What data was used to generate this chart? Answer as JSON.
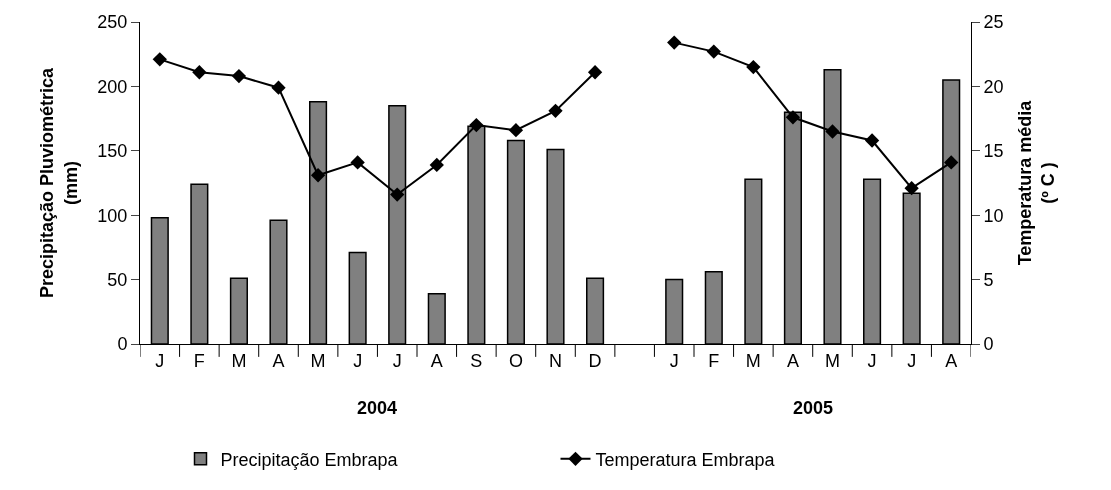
{
  "chart_data": {
    "type": "bar",
    "ylabel": "Precipitação Pluviométrica\n(mm)",
    "y2label": "Temperatura média\n(º C )",
    "categories": [
      "J",
      "F",
      "M",
      "A",
      "M",
      "J",
      "J",
      "A",
      "S",
      "O",
      "N",
      "D",
      null,
      "J",
      "F",
      "M",
      "A",
      "M",
      "J",
      "J",
      "A"
    ],
    "series": [
      {
        "name": "Precipitação Embrapa",
        "color": "#808080",
        "values": [
          98,
          124,
          51,
          96,
          188,
          71,
          185,
          39,
          169,
          158,
          151,
          51,
          null,
          50,
          56,
          128,
          180,
          213,
          128,
          117,
          205
        ]
      },
      {
        "name": "Temperatura Embrapa",
        "type": "line",
        "axis": "y2",
        "color": "#000000",
        "marker": "diamond",
        "values": [
          22.1,
          21.1,
          20.8,
          19.9,
          13.1,
          14.1,
          11.6,
          13.9,
          17.0,
          16.6,
          18.1,
          21.1,
          null,
          23.4,
          22.7,
          21.5,
          17.6,
          16.5,
          15.8,
          12.1,
          14.1
        ]
      }
    ],
    "ylim": [
      0,
      250
    ],
    "yticks": [
      0,
      50,
      100,
      150,
      200,
      250
    ],
    "y2lim": [
      0,
      25
    ],
    "y2ticks": [
      0,
      5,
      10,
      15,
      20,
      25
    ],
    "annotations": [
      "2004",
      "2005"
    ],
    "legend": "bottom"
  }
}
